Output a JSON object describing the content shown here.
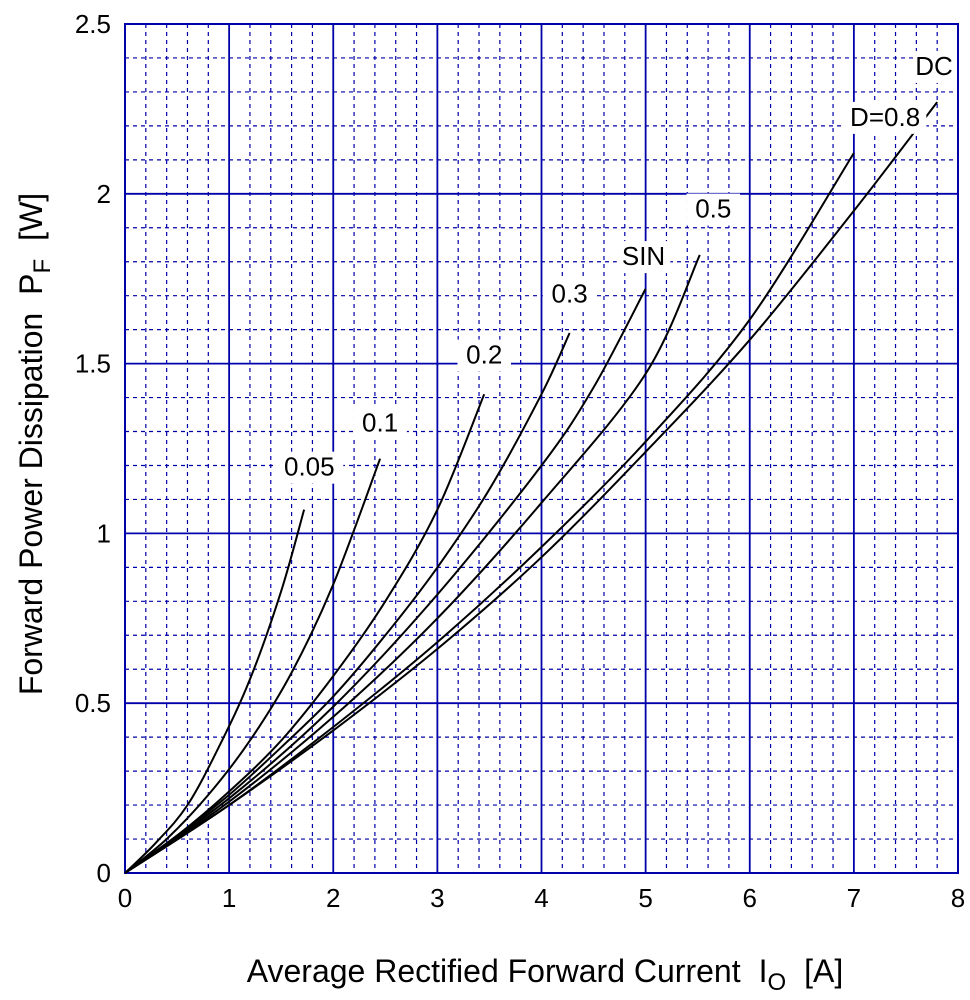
{
  "chart_data": {
    "type": "line",
    "title": "",
    "xlabel": "Average Rectified Forward Current",
    "xlabel_symbol": "I",
    "xlabel_sub": "O",
    "xlabel_unit": "[A]",
    "ylabel": "Forward Power Dissipation",
    "ylabel_symbol": "P",
    "ylabel_sub": "F",
    "ylabel_unit": "[W]",
    "xlim": [
      0,
      8
    ],
    "ylim": [
      0,
      2.5
    ],
    "x_ticks": [
      "0",
      "1",
      "2",
      "3",
      "4",
      "5",
      "6",
      "7",
      "8"
    ],
    "y_ticks": [
      "0",
      "0.5",
      "1",
      "1.5",
      "2",
      "2.5"
    ],
    "grid": "major solid, minor dashed",
    "grid_color": "#0000aa",
    "line_color": "#000000",
    "series": [
      {
        "name": "0.05",
        "x": [
          0,
          0.3,
          0.6,
          0.9,
          1.2,
          1.5,
          1.72
        ],
        "y": [
          0,
          0.09,
          0.2,
          0.37,
          0.57,
          0.83,
          1.07
        ]
      },
      {
        "name": "0.1",
        "x": [
          0,
          0.4,
          0.8,
          1.2,
          1.6,
          2.0,
          2.45
        ],
        "y": [
          0,
          0.1,
          0.23,
          0.39,
          0.59,
          0.85,
          1.22
        ]
      },
      {
        "name": "0.2",
        "x": [
          0,
          0.5,
          1.0,
          1.5,
          2.0,
          2.5,
          3.0,
          3.45
        ],
        "y": [
          0,
          0.11,
          0.24,
          0.39,
          0.58,
          0.8,
          1.07,
          1.41
        ]
      },
      {
        "name": "0.3",
        "x": [
          0,
          0.5,
          1.0,
          1.5,
          2.0,
          2.5,
          3.0,
          3.5,
          4.0,
          4.27
        ],
        "y": [
          0,
          0.11,
          0.23,
          0.37,
          0.52,
          0.7,
          0.9,
          1.13,
          1.41,
          1.59
        ]
      },
      {
        "name": "SIN",
        "x": [
          0,
          1.0,
          2.0,
          3.0,
          4.0,
          4.5,
          5.0
        ],
        "y": [
          0,
          0.22,
          0.49,
          0.82,
          1.2,
          1.43,
          1.72
        ]
      },
      {
        "name": "0.5",
        "x": [
          0,
          1.0,
          2.0,
          3.0,
          4.0,
          5.0,
          5.52
        ],
        "y": [
          0,
          0.21,
          0.46,
          0.75,
          1.09,
          1.47,
          1.82
        ]
      },
      {
        "name": "D=0.8",
        "x": [
          0,
          1.0,
          2.0,
          3.0,
          4.0,
          5.0,
          6.0,
          7.0
        ],
        "y": [
          0,
          0.2,
          0.43,
          0.68,
          0.96,
          1.27,
          1.63,
          2.12
        ]
      },
      {
        "name": "DC",
        "x": [
          0,
          1.0,
          2.0,
          3.0,
          4.0,
          5.0,
          6.0,
          7.0,
          7.8
        ],
        "y": [
          0,
          0.2,
          0.42,
          0.66,
          0.93,
          1.24,
          1.57,
          1.95,
          2.27
        ]
      }
    ],
    "labels": [
      {
        "text": "0.05",
        "x": 1.77,
        "y": 1.17
      },
      {
        "text": "0.1",
        "x": 2.45,
        "y": 1.3
      },
      {
        "text": "0.2",
        "x": 3.45,
        "y": 1.5
      },
      {
        "text": "0.3",
        "x": 4.27,
        "y": 1.68
      },
      {
        "text": "SIN",
        "x": 4.98,
        "y": 1.79
      },
      {
        "text": "0.5",
        "x": 5.65,
        "y": 1.93
      },
      {
        "text": "D=0.8",
        "x": 7.3,
        "y": 2.2
      },
      {
        "text": "DC",
        "x": 7.77,
        "y": 2.35
      }
    ]
  }
}
